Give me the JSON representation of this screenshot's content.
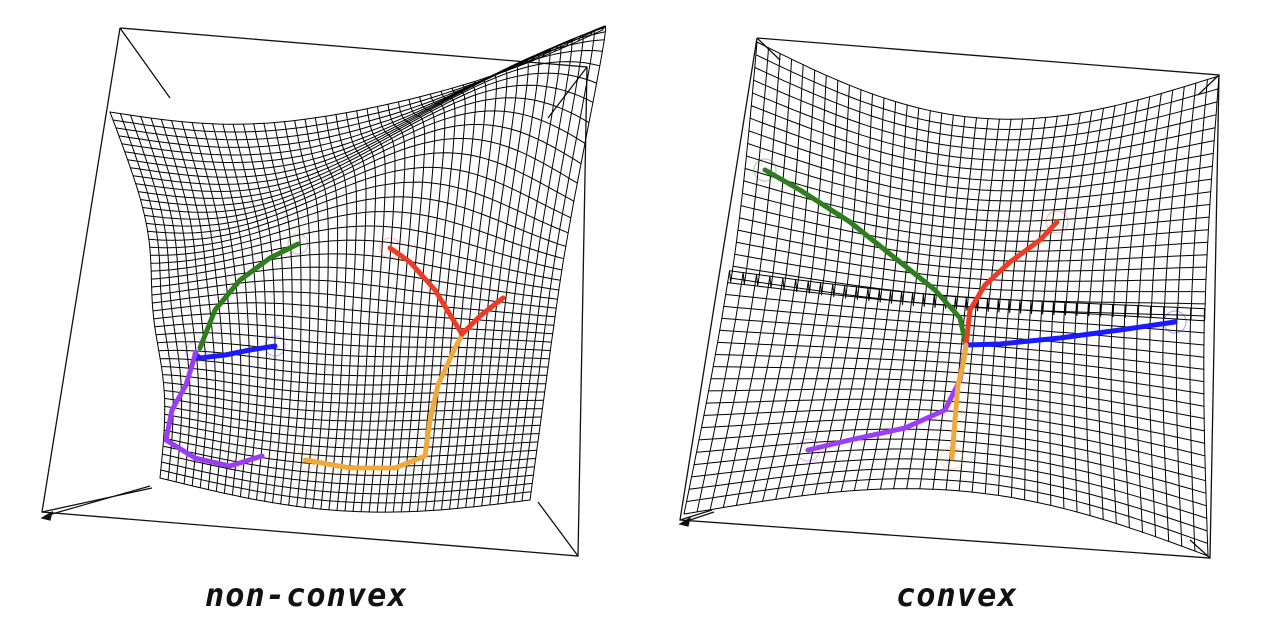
{
  "panels": [
    {
      "caption": "non-convex",
      "surface": "non-convex",
      "paths": [
        {
          "color": "#2e7d1e",
          "name": "green"
        },
        {
          "color": "#1a1aff",
          "name": "blue"
        },
        {
          "color": "#9b3df5",
          "name": "purple"
        },
        {
          "color": "#f0aa3c",
          "name": "orange"
        },
        {
          "color": "#ee3b24",
          "name": "red"
        }
      ]
    },
    {
      "caption": "convex",
      "surface": "convex",
      "paths": [
        {
          "color": "#2e7d1e",
          "name": "green"
        },
        {
          "color": "#ee3b24",
          "name": "red"
        },
        {
          "color": "#1a1aff",
          "name": "blue"
        },
        {
          "color": "#9b3df5",
          "name": "purple"
        },
        {
          "color": "#f0aa3c",
          "name": "orange"
        }
      ]
    }
  ],
  "colors": {
    "mesh": "#000000",
    "background": "#ffffff"
  }
}
